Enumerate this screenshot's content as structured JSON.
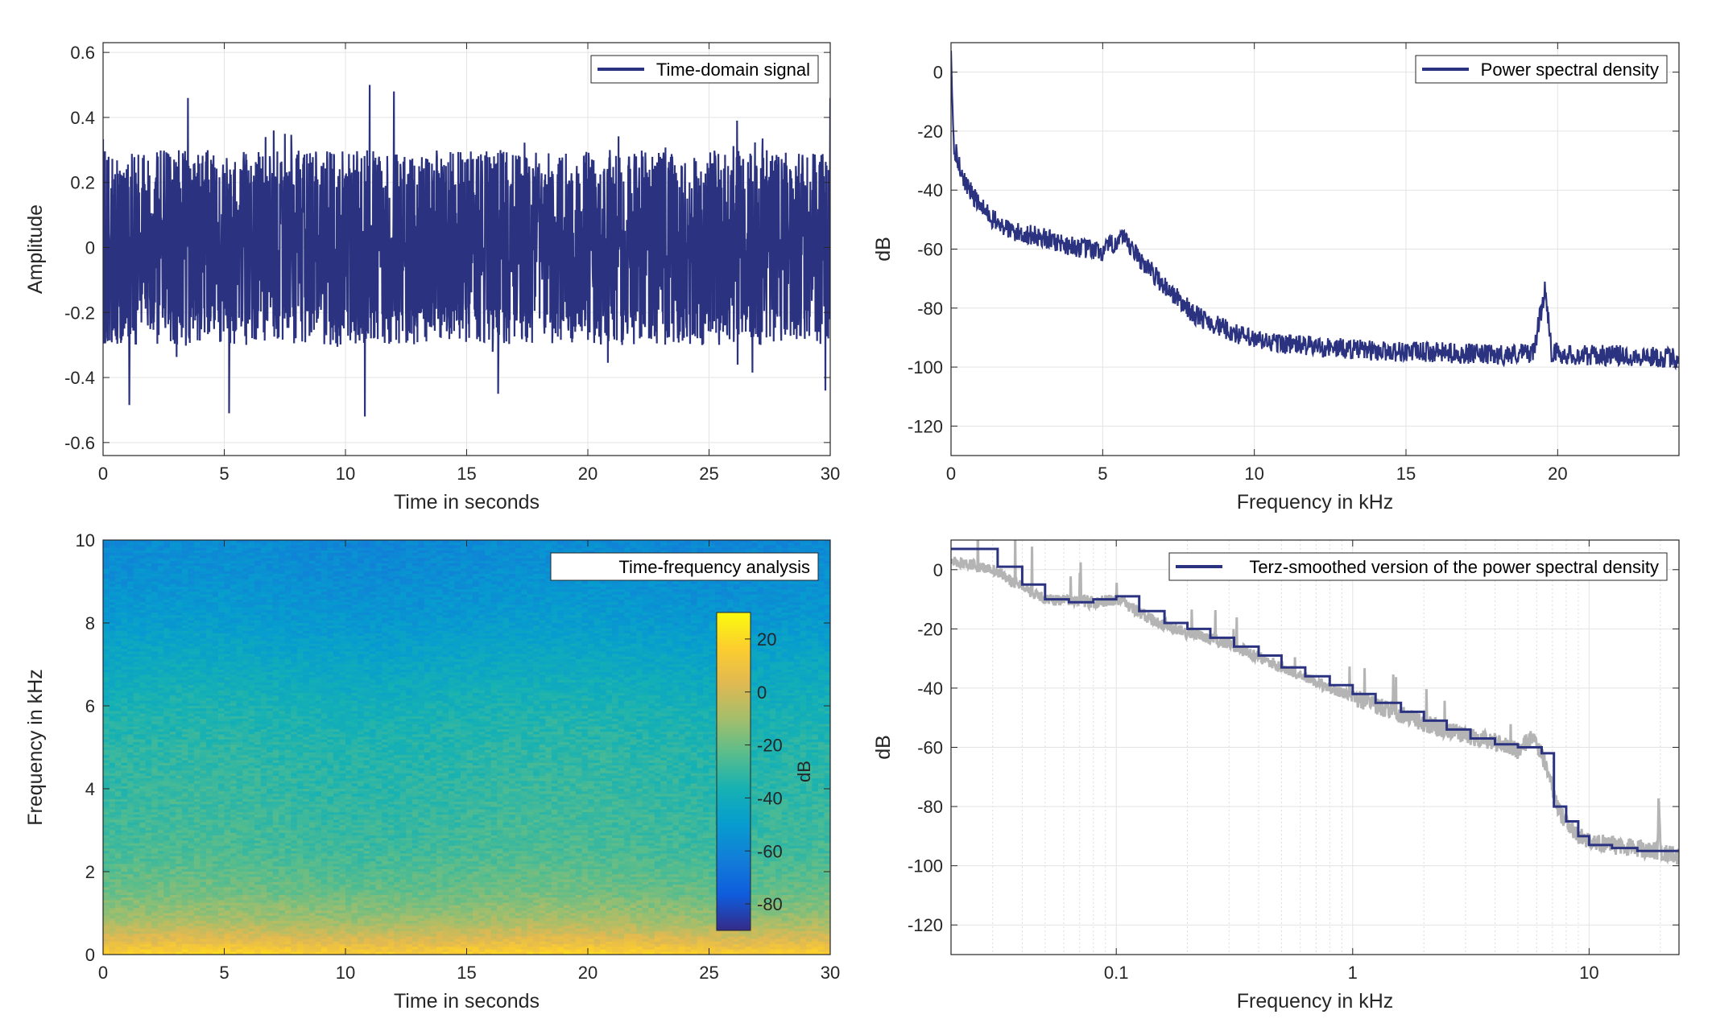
{
  "chart_data": [
    {
      "id": "p1",
      "type": "line",
      "xlabel": "Time in seconds",
      "ylabel": "Amplitude",
      "xlim": [
        0,
        30
      ],
      "ylim": [
        -0.64,
        0.63
      ],
      "xticks": [
        0,
        5,
        10,
        15,
        20,
        25,
        30
      ],
      "yticks": [
        -0.6,
        -0.4,
        -0.2,
        0,
        0.2,
        0.4,
        0.6
      ],
      "xtick_labels": [
        "0",
        "5",
        "10",
        "15",
        "20",
        "25",
        "30"
      ],
      "ytick_labels": [
        "-0.6",
        "-0.4",
        "-0.2",
        "0",
        "0.2",
        "0.4",
        "0.6"
      ],
      "grid": true,
      "legend_position": "top-right",
      "series": [
        {
          "name": "Time-domain signal",
          "color": "#2b3280",
          "description_values": "random noise, envelope approx ±0.3, peaks to ±0.5",
          "peaks": [
            [
              3.5,
              0.46
            ],
            [
              11,
              0.5
            ],
            [
              12,
              0.48
            ],
            [
              5.2,
              -0.51
            ],
            [
              10.8,
              -0.52
            ],
            [
              16.3,
              -0.45
            ],
            [
              29.8,
              -0.44
            ],
            [
              30,
              0.46
            ]
          ]
        }
      ]
    },
    {
      "id": "p2",
      "type": "line",
      "xlabel": "Frequency in kHz",
      "ylabel": "dB",
      "xlim": [
        0,
        24
      ],
      "ylim": [
        -130,
        10
      ],
      "xticks": [
        0,
        5,
        10,
        15,
        20
      ],
      "yticks": [
        -120,
        -100,
        -80,
        -60,
        -40,
        -20,
        0
      ],
      "xtick_labels": [
        "0",
        "5",
        "10",
        "15",
        "20"
      ],
      "ytick_labels": [
        "-120",
        "-100",
        "-80",
        "-60",
        "-40",
        "-20",
        "0"
      ],
      "grid": true,
      "legend_position": "top-right",
      "series": [
        {
          "name": "Power spectral density",
          "color": "#2b3280",
          "x": [
            0.0,
            0.1,
            0.3,
            0.6,
            1.0,
            1.5,
            2.0,
            3.0,
            4.0,
            5.0,
            5.6,
            6.2,
            7.0,
            8.0,
            9.0,
            10.0,
            12.0,
            14.0,
            16.0,
            18.0,
            19.2,
            19.6,
            19.8,
            20.5,
            22.0,
            24.0
          ],
          "y": [
            5,
            -25,
            -33,
            -40,
            -46,
            -51,
            -54,
            -56,
            -59,
            -61,
            -56,
            -63,
            -72,
            -82,
            -87,
            -91,
            -93,
            -94.5,
            -95,
            -96,
            -95,
            -73,
            -95,
            -96,
            -96,
            -97
          ]
        }
      ]
    },
    {
      "id": "p3",
      "type": "heatmap",
      "xlabel": "Time in seconds",
      "ylabel": "Frequency in kHz",
      "xlim": [
        0,
        30
      ],
      "ylim": [
        0,
        10
      ],
      "xticks": [
        0,
        5,
        10,
        15,
        20,
        25,
        30
      ],
      "yticks": [
        0,
        2,
        4,
        6,
        8,
        10
      ],
      "xtick_labels": [
        "0",
        "5",
        "10",
        "15",
        "20",
        "25",
        "30"
      ],
      "ytick_labels": [
        "0",
        "2",
        "4",
        "6",
        "8",
        "10"
      ],
      "legend_position": "top-right",
      "legend_label": "Time-frequency analysis",
      "colorbar": {
        "label": "dB",
        "range": [
          -90,
          30
        ],
        "ticks": [
          -80,
          -60,
          -40,
          -20,
          0,
          20
        ],
        "tick_labels": [
          "-80",
          "-60",
          "-40",
          "-20",
          "0",
          "20"
        ],
        "colormap": "parula"
      },
      "freq_profile_khz": [
        0,
        0.3,
        0.8,
        1.5,
        2.5,
        4,
        5,
        6,
        7,
        8,
        9,
        10
      ],
      "freq_profile_db": [
        18,
        5,
        -10,
        -20,
        -27,
        -31,
        -33,
        -37,
        -43,
        -50,
        -55,
        -58
      ]
    },
    {
      "id": "p4",
      "type": "line",
      "xlabel": "Frequency in kHz",
      "ylabel": "dB",
      "xscale": "log",
      "xlim": [
        0.02,
        24
      ],
      "ylim": [
        -130,
        10
      ],
      "xticks": [
        0.1,
        1,
        10
      ],
      "yticks": [
        -120,
        -100,
        -80,
        -60,
        -40,
        -20,
        0
      ],
      "xtick_labels": [
        "0.1",
        "1",
        "10"
      ],
      "ytick_labels": [
        "-120",
        "-100",
        "-80",
        "-60",
        "-40",
        "-20",
        "0"
      ],
      "grid": true,
      "minor_grid": true,
      "legend_position": "top-right",
      "series": [
        {
          "name": "Terz-smoothed version of the power spectral density",
          "color": "#2b3280",
          "style": "step",
          "x": [
            0.02,
            0.025,
            0.0315,
            0.04,
            0.05,
            0.063,
            0.08,
            0.1,
            0.125,
            0.16,
            0.2,
            0.25,
            0.315,
            0.4,
            0.5,
            0.63,
            0.8,
            1.0,
            1.25,
            1.6,
            2.0,
            2.5,
            3.15,
            4.0,
            5.0,
            6.3,
            7.1,
            8.0,
            9.0,
            10.0,
            12.5,
            16.0,
            20.0,
            24.0
          ],
          "y": [
            7,
            7,
            1,
            -5,
            -10,
            -11,
            -10,
            -9,
            -14,
            -18,
            -20,
            -23,
            -26,
            -29,
            -33,
            -36,
            -39,
            -42,
            -45,
            -48,
            -51,
            -54,
            -57,
            -59,
            -60,
            -62,
            -80,
            -85,
            -90,
            -93,
            -94,
            -95,
            -95,
            -95
          ]
        },
        {
          "color": "#b4b4b4",
          "description_values": "raw power spectral density (gray, behind the smoothed curve)",
          "x": [
            0.02,
            0.03,
            0.05,
            0.08,
            0.1,
            0.15,
            0.2,
            0.3,
            0.5,
            0.8,
            1.0,
            1.5,
            2.0,
            3.0,
            4.0,
            5.0,
            5.8,
            6.5,
            7.5,
            9.0,
            12.0,
            16.0,
            19.5,
            19.7,
            20.0,
            24.0
          ],
          "y": [
            3,
            0,
            -10,
            -11,
            -10,
            -18,
            -21,
            -25,
            -33,
            -40,
            -43,
            -48,
            -52,
            -56,
            -58,
            -61,
            -56,
            -65,
            -82,
            -90,
            -93,
            -94,
            -95,
            -73,
            -95,
            -97
          ]
        }
      ]
    }
  ]
}
